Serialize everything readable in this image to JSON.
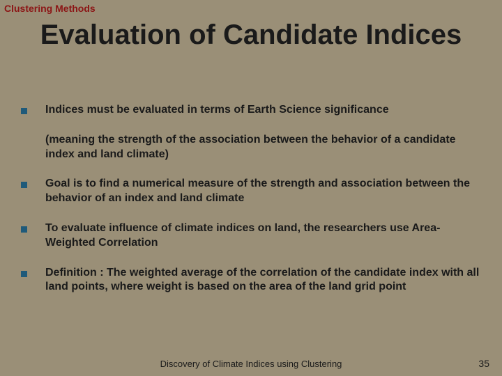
{
  "colors": {
    "background": "#9a8f77",
    "header_label": "#8c1515",
    "title": "#1a1a1a",
    "body_text": "#1a1a1a",
    "bullet": "#1f5a7a",
    "footer": "#1a1a1a",
    "page_num": "#1a1a1a"
  },
  "header_label": "Clustering Methods",
  "title": "Evaluation of Candidate Indices",
  "bullets": [
    {
      "text": "Indices must be evaluated in terms of Earth Science significance",
      "sub": "(meaning the strength of the association between the behavior of a candidate index and land climate)"
    },
    {
      "text": "Goal is to find a numerical measure of the strength and association between the behavior of an index and land climate"
    },
    {
      "text": "To evaluate influence of climate indices on land, the researchers use Area-Weighted Correlation"
    },
    {
      "text": "Definition :  The weighted average of the correlation of the candidate index with all land points, where weight is based on the area of the land grid point"
    }
  ],
  "footer": "Discovery of Climate Indices using Clustering",
  "page_number": "35"
}
